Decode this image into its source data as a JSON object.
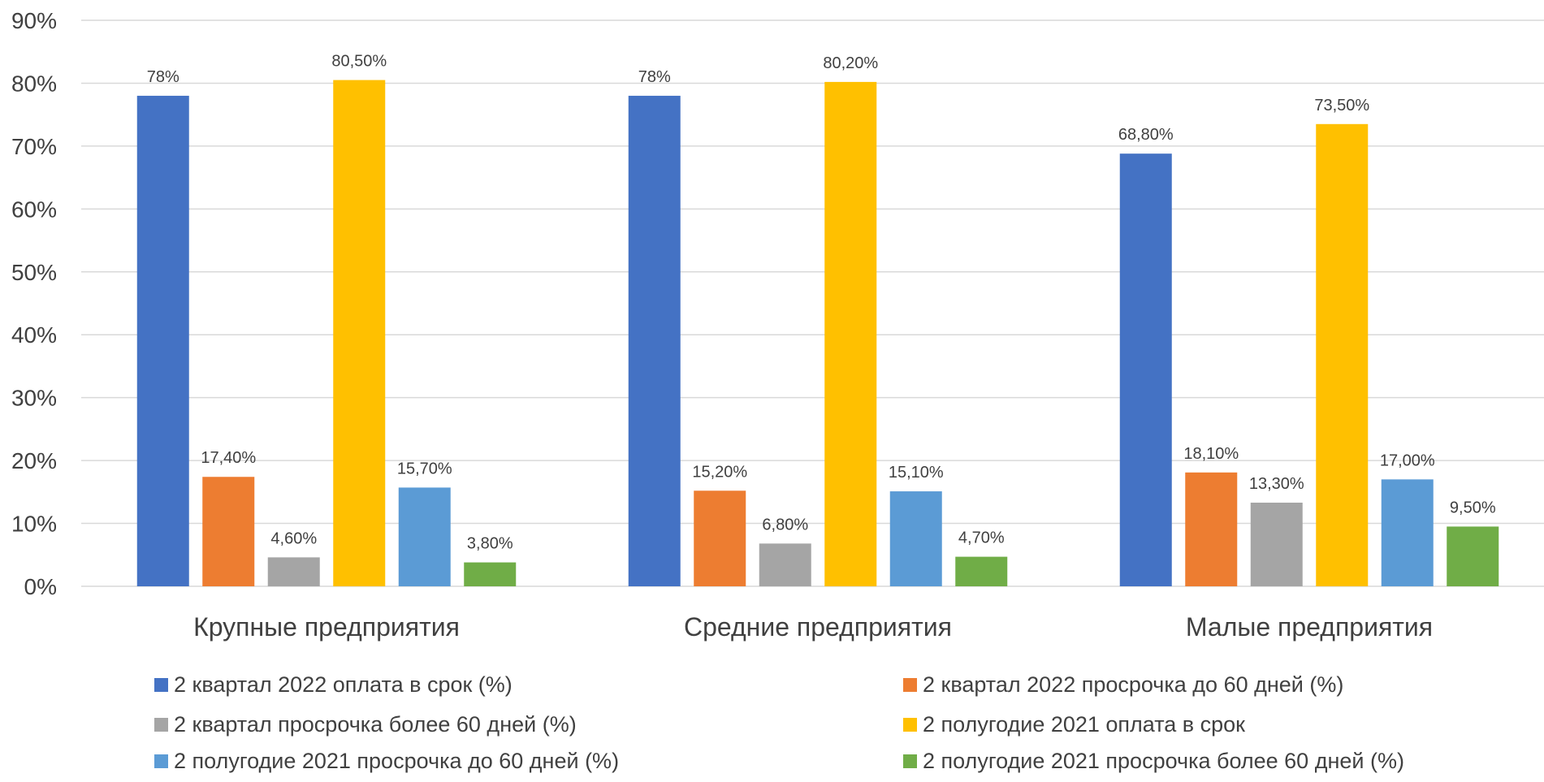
{
  "chart_data": {
    "type": "bar",
    "title": "",
    "xlabel": "",
    "ylabel": "",
    "ylim": [
      0,
      90
    ],
    "yticks": [
      0,
      10,
      20,
      30,
      40,
      50,
      60,
      70,
      80,
      90
    ],
    "ytick_labels": [
      "0%",
      "10%",
      "20%",
      "30%",
      "40%",
      "50%",
      "60%",
      "70%",
      "80%",
      "90%"
    ],
    "grid": true,
    "legend_position": "bottom",
    "categories": [
      "Крупные предприятия",
      "Средние предприятия",
      "Малые предприятия"
    ],
    "series": [
      {
        "name": "2 квартал 2022 оплата в срок (%)",
        "color": "#4472C4",
        "values": [
          78,
          78,
          68.8
        ],
        "labels": [
          "78%",
          "78%",
          "68,80%"
        ]
      },
      {
        "name": "2 квартал 2022 просрочка до 60 дней (%)",
        "color": "#ED7D31",
        "values": [
          17.4,
          15.2,
          18.1
        ],
        "labels": [
          "17,40%",
          "15,20%",
          "18,10%"
        ]
      },
      {
        "name": "2 квартал просрочка более 60 дней (%)",
        "color": "#A5A5A5",
        "values": [
          4.6,
          6.8,
          13.3
        ],
        "labels": [
          "4,60%",
          "6,80%",
          "13,30%"
        ]
      },
      {
        "name": "2 полугодие 2021 оплата в срок",
        "color": "#FFC000",
        "values": [
          80.5,
          80.2,
          73.5
        ],
        "labels": [
          "80,50%",
          "80,20%",
          "73,50%"
        ]
      },
      {
        "name": "2 полугодие 2021 просрочка до 60 дней (%)",
        "color": "#5B9BD5",
        "values": [
          15.7,
          15.1,
          17.0
        ],
        "labels": [
          "15,70%",
          "15,10%",
          "17,00%"
        ]
      },
      {
        "name": "2 полугодие 2021 просрочка более 60 дней (%)",
        "color": "#70AD47",
        "values": [
          3.8,
          4.7,
          9.5
        ],
        "labels": [
          "3,80%",
          "4,70%",
          "9,50%"
        ]
      }
    ],
    "gridline_color": "#D9D9D9",
    "text_color": "#404040",
    "label_color": "#404040"
  }
}
